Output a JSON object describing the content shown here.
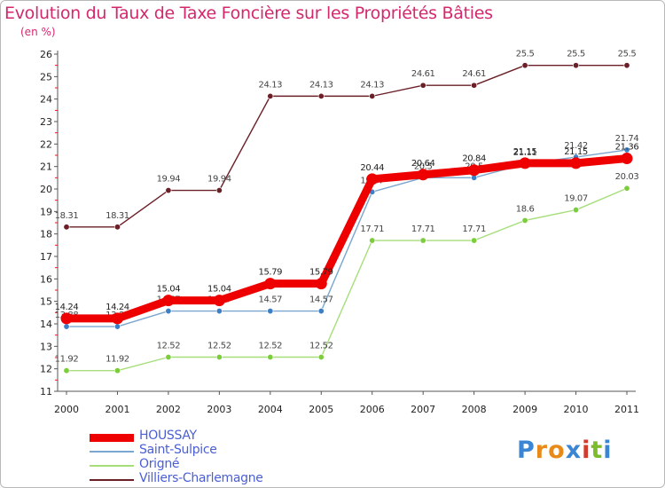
{
  "chart_data": {
    "type": "line",
    "title": "Evolution du Taux de Taxe Foncière sur les Propriétés Bâties",
    "subtitle": "(en %)",
    "xlabel": "",
    "ylabel": "",
    "categories": [
      "2000",
      "2001",
      "2002",
      "2003",
      "2004",
      "2005",
      "2006",
      "2007",
      "2008",
      "2009",
      "2010",
      "2011"
    ],
    "ylim": [
      11,
      26
    ],
    "yticks": [
      11,
      12,
      13,
      14,
      15,
      16,
      17,
      18,
      19,
      20,
      21,
      22,
      23,
      24,
      25,
      26
    ],
    "grid": false,
    "legend_position": "bottom-left",
    "series": [
      {
        "name": "Villiers-Charlemagne",
        "color": "#6b2027",
        "point_color": "#6b2027",
        "values": [
          18.31,
          18.31,
          19.94,
          19.94,
          24.13,
          24.13,
          24.13,
          24.61,
          24.61,
          25.5,
          25.5,
          25.5
        ],
        "labels": [
          "18.31",
          "18.31",
          "19.94",
          "19.94",
          "24.13",
          "24.13",
          "24.13",
          "24.61",
          "24.61",
          "25.5",
          "25.5",
          "25.5"
        ]
      },
      {
        "name": "Origné",
        "color": "#a6de7a",
        "point_color": "#7ccd3c",
        "values": [
          11.92,
          11.92,
          12.52,
          12.52,
          12.52,
          12.52,
          17.71,
          17.71,
          17.71,
          18.6,
          19.07,
          20.03
        ],
        "labels": [
          "11.92",
          "11.92",
          "12.52",
          "12.52",
          "12.52",
          "12.52",
          "17.71",
          "17.71",
          "17.71",
          "18.6",
          "19.07",
          "20.03"
        ]
      },
      {
        "name": "Saint-Sulpice",
        "color": "#7ba6cf",
        "point_color": "#3d7fc5",
        "values": [
          13.88,
          13.88,
          14.57,
          14.57,
          14.57,
          14.57,
          19.87,
          20.5,
          20.5,
          21.11,
          21.42,
          21.74
        ],
        "labels": [
          "13.88",
          "13.88",
          "14.57",
          "14.57",
          "14.57",
          "14.57",
          "19.87",
          "20.5",
          "20.5",
          "21.11",
          "21.42",
          "21.74"
        ]
      },
      {
        "name": "HOUSSAY",
        "color": "#ee0000",
        "point_color": "#ee0000",
        "values": [
          14.24,
          14.24,
          15.04,
          15.04,
          15.79,
          15.79,
          20.44,
          20.64,
          20.84,
          21.15,
          21.15,
          21.36
        ],
        "labels": [
          "14.24",
          "14.24",
          "15.04",
          "15.04",
          "15.79",
          "15.79",
          "20.44",
          "20.64",
          "20.84",
          "21.15",
          "21.15",
          "21.36"
        ]
      }
    ]
  },
  "legend": [
    {
      "name": "HOUSSAY",
      "color": "#ee0000"
    },
    {
      "name": "Saint-Sulpice",
      "color": "#7ba6cf"
    },
    {
      "name": "Origné",
      "color": "#a6de7a"
    },
    {
      "name": "Villiers-Charlemagne",
      "color": "#6b2027"
    }
  ],
  "logo": {
    "letters": [
      "P",
      "r",
      "o",
      "x",
      "i",
      "t",
      "i"
    ],
    "colors": [
      "#3a86d4",
      "#e88a1a",
      "#e88a1a",
      "#3a86d4",
      "#d23c2c",
      "#7cbc2a",
      "#3a86d4"
    ]
  }
}
